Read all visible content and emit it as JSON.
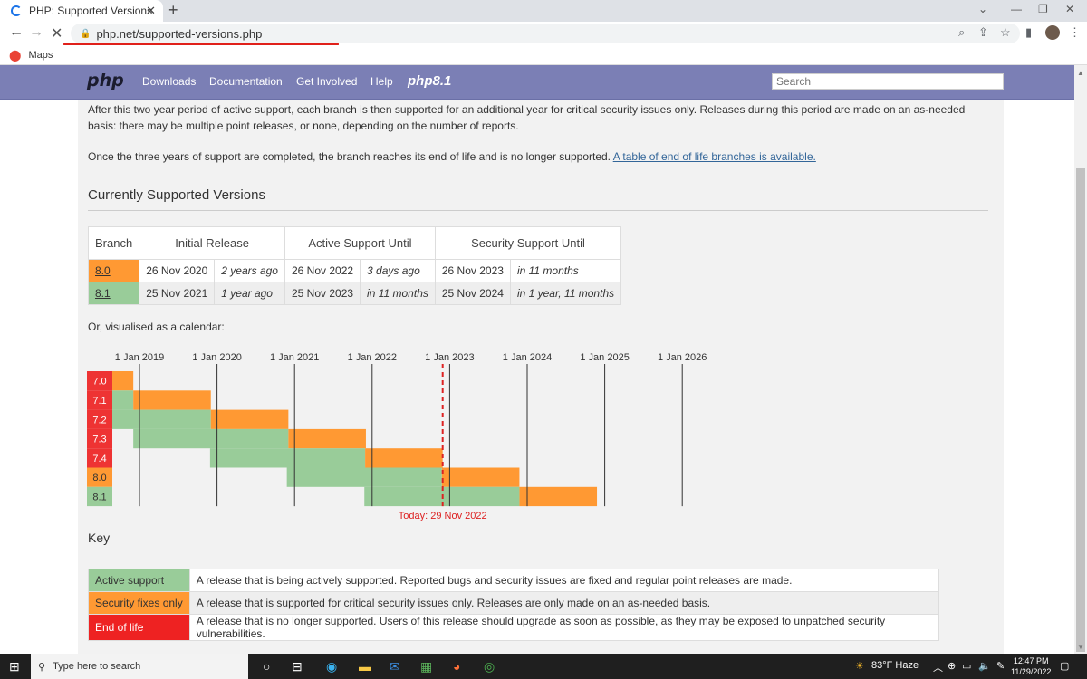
{
  "browser": {
    "tab_title": "PHP: Supported Versions",
    "tab_close": "✕",
    "new_tab": "+",
    "url": "php.net/supported-versions.php",
    "bookmark": "Maps"
  },
  "nav": {
    "logo": "php",
    "links": [
      "Downloads",
      "Documentation",
      "Get Involved",
      "Help"
    ],
    "promo": "php8.1",
    "search_placeholder": "Search"
  },
  "content": {
    "para1": "After this two year period of active support, each branch is then supported for an additional year for critical security issues only. Releases during this period are made on an as-needed basis: there may be multiple point releases, or none, depending on the number of reports.",
    "para2_text": "Once the three years of support are completed, the branch reaches its end of life and is no longer supported.",
    "para2_link": "A table of end of life branches is available.",
    "heading": "Currently Supported Versions",
    "table": {
      "headers": [
        "Branch",
        "Initial Release",
        "Active Support Until",
        "Security Support Until"
      ],
      "rows": [
        {
          "branch": "8.0",
          "initial": "26 Nov 2020",
          "initial_rel": "2 years ago",
          "active": "26 Nov 2022",
          "active_rel": "3 days ago",
          "security": "26 Nov 2023",
          "security_rel": "in 11 months"
        },
        {
          "branch": "8.1",
          "initial": "25 Nov 2021",
          "initial_rel": "1 year ago",
          "active": "25 Nov 2023",
          "active_rel": "in 11 months",
          "security": "25 Nov 2024",
          "security_rel": "in 1 year, 11 months"
        }
      ]
    },
    "calendar_intro": "Or, visualised as a calendar:",
    "key_heading": "Key",
    "key": [
      {
        "label": "Active support",
        "desc": "A release that is being actively supported. Reported bugs and security issues are fixed and regular point releases are made."
      },
      {
        "label": "Security fixes only",
        "desc": "A release that is supported for critical security issues only. Releases are only made on an as-needed basis."
      },
      {
        "label": "End of life",
        "desc": "A release that is no longer supported. Users of this release should upgrade as soon as possible, as they may be exposed to unpatched security vulnerabilities."
      }
    ]
  },
  "calendar": {
    "year_labels": [
      "1 Jan 2019",
      "1 Jan 2020",
      "1 Jan 2021",
      "1 Jan 2022",
      "1 Jan 2023",
      "1 Jan 2024",
      "1 Jan 2025",
      "1 Jan 2026"
    ],
    "start_year": 2019,
    "end_year": 2026,
    "today": 2022.91,
    "today_label": "Today: 29 Nov 2022",
    "branches": [
      {
        "name": "7.0",
        "start": 2015.92,
        "active_end": 2017.92,
        "security_end": 2018.92
      },
      {
        "name": "7.1",
        "start": 2016.92,
        "active_end": 2018.92,
        "security_end": 2019.92
      },
      {
        "name": "7.2",
        "start": 2017.92,
        "active_end": 2019.92,
        "security_end": 2020.92
      },
      {
        "name": "7.3",
        "start": 2018.92,
        "active_end": 2020.92,
        "security_end": 2021.92
      },
      {
        "name": "7.4",
        "start": 2019.91,
        "active_end": 2021.91,
        "security_end": 2022.91
      },
      {
        "name": "8.0",
        "start": 2020.9,
        "active_end": 2022.9,
        "security_end": 2023.9
      },
      {
        "name": "8.1",
        "start": 2021.9,
        "active_end": 2023.9,
        "security_end": 2024.9
      }
    ],
    "colors": {
      "eol": "#ee3333",
      "security": "#ff9933",
      "active": "#99cc99",
      "today": "#dd2222"
    }
  },
  "taskbar": {
    "search_placeholder": "Type here to search",
    "weather": "83°F  Haze",
    "time": "12:47 PM",
    "date": "11/29/2022"
  }
}
